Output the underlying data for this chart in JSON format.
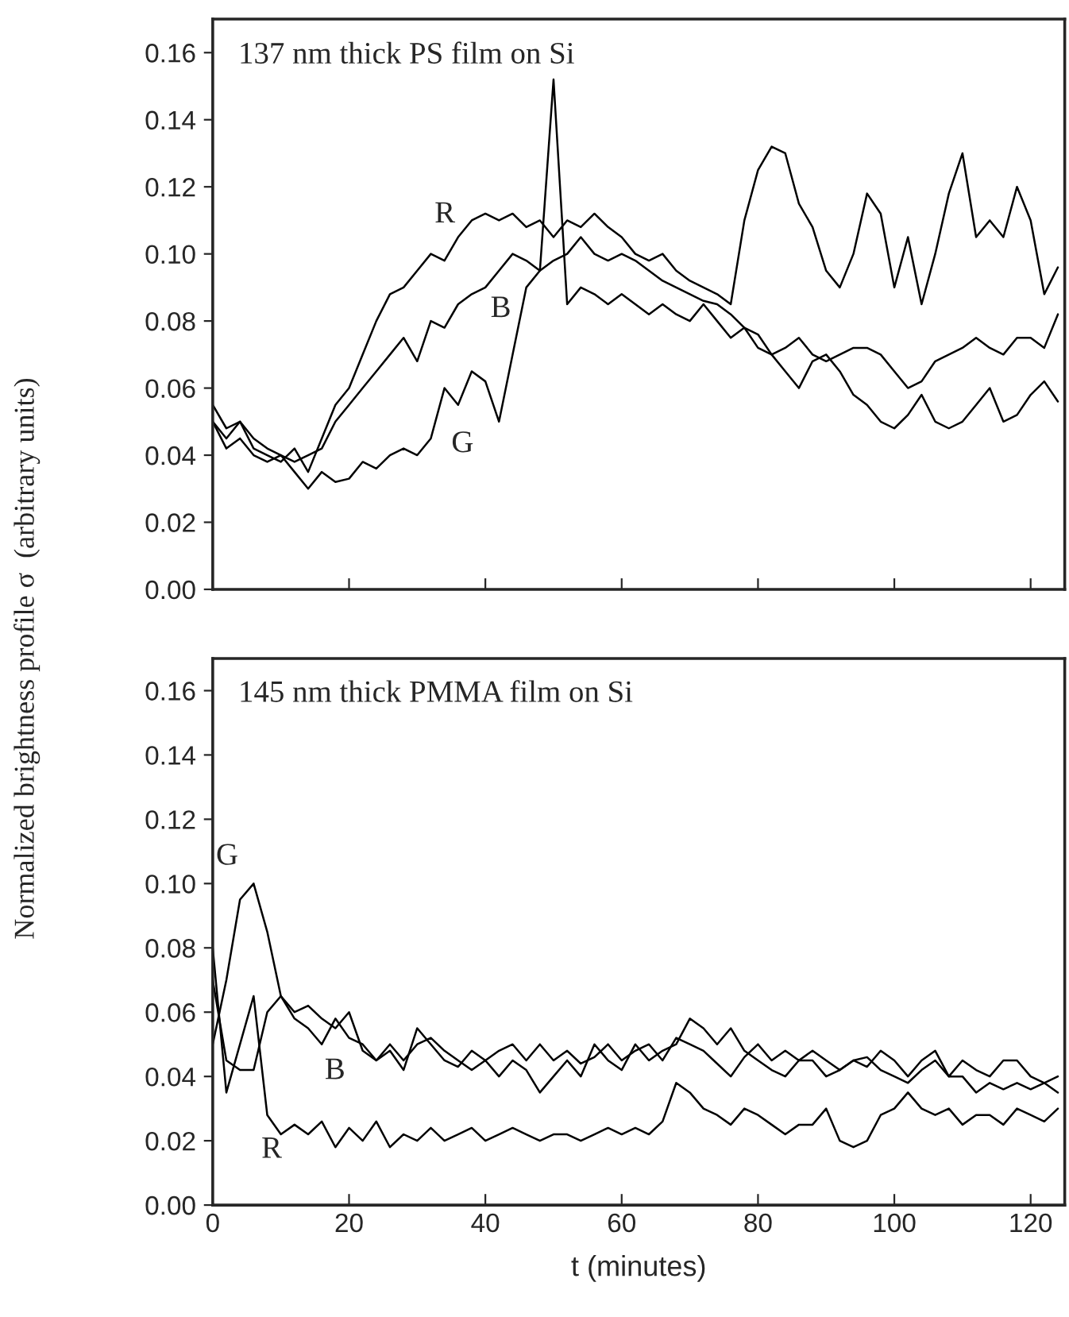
{
  "chart_data": [
    {
      "type": "line",
      "ylabel": "Normalized brightness profile σ  (arbitrary units)",
      "tick_labels": "y",
      "grid": false,
      "legend": false,
      "x": [
        0,
        2,
        4,
        6,
        8,
        10,
        12,
        14,
        16,
        18,
        20,
        22,
        24,
        26,
        28,
        30,
        32,
        34,
        36,
        38,
        40,
        42,
        44,
        46,
        48,
        50,
        52,
        54,
        56,
        58,
        60,
        62,
        64,
        66,
        68,
        70,
        72,
        74,
        76,
        78,
        80,
        82,
        84,
        86,
        88,
        90,
        92,
        94,
        96,
        98,
        100,
        102,
        104,
        106,
        108,
        110,
        112,
        114,
        116,
        118,
        120,
        122,
        124
      ],
      "xlim": [
        0,
        125
      ],
      "xticks": [
        0,
        20,
        40,
        60,
        80,
        100,
        120
      ],
      "ylim": [
        0,
        0.17
      ],
      "yticks": [
        {
          "value": 0,
          "label": "0.00"
        },
        {
          "value": 0.02,
          "label": "0.02"
        },
        {
          "value": 0.04,
          "label": "0.04"
        },
        {
          "value": 0.06,
          "label": "0.06"
        },
        {
          "value": 0.08,
          "label": "0.08"
        },
        {
          "value": 0.1,
          "label": "0.10"
        },
        {
          "value": 0.12,
          "label": "0.12"
        },
        {
          "value": 0.14,
          "label": "0.14"
        },
        {
          "value": 0.16,
          "label": "0.16"
        }
      ],
      "series": [
        {
          "name": "R",
          "color": "#000000",
          "values": [
            0.05,
            0.045,
            0.05,
            0.042,
            0.04,
            0.038,
            0.042,
            0.035,
            0.045,
            0.055,
            0.06,
            0.07,
            0.08,
            0.088,
            0.09,
            0.095,
            0.1,
            0.098,
            0.105,
            0.11,
            0.112,
            0.11,
            0.112,
            0.108,
            0.11,
            0.105,
            0.11,
            0.108,
            0.112,
            0.108,
            0.105,
            0.1,
            0.098,
            0.1,
            0.095,
            0.092,
            0.09,
            0.088,
            0.085,
            0.11,
            0.125,
            0.132,
            0.13,
            0.115,
            0.108,
            0.095,
            0.09,
            0.1,
            0.118,
            0.112,
            0.09,
            0.105,
            0.085,
            0.1,
            0.118,
            0.13,
            0.105,
            0.11,
            0.105,
            0.12,
            0.11,
            0.088,
            0.096
          ]
        },
        {
          "name": "B",
          "color": "#000000",
          "values": [
            0.055,
            0.048,
            0.05,
            0.045,
            0.042,
            0.04,
            0.038,
            0.04,
            0.042,
            0.05,
            0.055,
            0.06,
            0.065,
            0.07,
            0.075,
            0.068,
            0.08,
            0.078,
            0.085,
            0.088,
            0.09,
            0.095,
            0.1,
            0.098,
            0.095,
            0.098,
            0.1,
            0.105,
            0.1,
            0.098,
            0.1,
            0.098,
            0.095,
            0.092,
            0.09,
            0.088,
            0.086,
            0.085,
            0.082,
            0.078,
            0.076,
            0.07,
            0.072,
            0.075,
            0.07,
            0.068,
            0.07,
            0.072,
            0.072,
            0.07,
            0.065,
            0.06,
            0.062,
            0.068,
            0.07,
            0.072,
            0.075,
            0.072,
            0.07,
            0.075,
            0.075,
            0.072,
            0.082
          ]
        },
        {
          "name": "G",
          "color": "#000000",
          "values": [
            0.05,
            0.042,
            0.045,
            0.04,
            0.038,
            0.04,
            0.035,
            0.03,
            0.035,
            0.032,
            0.033,
            0.038,
            0.036,
            0.04,
            0.042,
            0.04,
            0.045,
            0.06,
            0.055,
            0.065,
            0.062,
            0.05,
            0.07,
            0.09,
            0.095,
            0.152,
            0.085,
            0.09,
            0.088,
            0.085,
            0.088,
            0.085,
            0.082,
            0.085,
            0.082,
            0.08,
            0.085,
            0.08,
            0.075,
            0.078,
            0.072,
            0.07,
            0.065,
            0.06,
            0.068,
            0.07,
            0.065,
            0.058,
            0.055,
            0.05,
            0.048,
            0.052,
            0.058,
            0.05,
            0.048,
            0.05,
            0.055,
            0.06,
            0.05,
            0.052,
            0.058,
            0.062,
            0.056
          ]
        }
      ],
      "annotations": [
        "137 nm thick PS film on Si"
      ]
    },
    {
      "type": "line",
      "xlabel": "t (minutes)",
      "grid": false,
      "legend": false,
      "x": [
        0,
        2,
        4,
        6,
        8,
        10,
        12,
        14,
        16,
        18,
        20,
        22,
        24,
        26,
        28,
        30,
        32,
        34,
        36,
        38,
        40,
        42,
        44,
        46,
        48,
        50,
        52,
        54,
        56,
        58,
        60,
        62,
        64,
        66,
        68,
        70,
        72,
        74,
        76,
        78,
        80,
        82,
        84,
        86,
        88,
        90,
        92,
        94,
        96,
        98,
        100,
        102,
        104,
        106,
        108,
        110,
        112,
        114,
        116,
        118,
        120,
        122,
        124
      ],
      "xlim": [
        0,
        125
      ],
      "xticks": [
        0,
        20,
        40,
        60,
        80,
        100,
        120
      ],
      "ylim": [
        0,
        0.17
      ],
      "yticks": [
        {
          "value": 0,
          "label": "0.00"
        },
        {
          "value": 0.02,
          "label": "0.02"
        },
        {
          "value": 0.04,
          "label": "0.04"
        },
        {
          "value": 0.06,
          "label": "0.06"
        },
        {
          "value": 0.08,
          "label": "0.08"
        },
        {
          "value": 0.1,
          "label": "0.10"
        },
        {
          "value": 0.12,
          "label": "0.12"
        },
        {
          "value": 0.14,
          "label": "0.14"
        },
        {
          "value": 0.16,
          "label": "0.16"
        }
      ],
      "series": [
        {
          "name": "G",
          "color": "#000000",
          "values": [
            0.05,
            0.07,
            0.095,
            0.1,
            0.085,
            0.065,
            0.058,
            0.055,
            0.05,
            0.058,
            0.052,
            0.05,
            0.045,
            0.048,
            0.042,
            0.055,
            0.05,
            0.045,
            0.043,
            0.048,
            0.045,
            0.04,
            0.045,
            0.042,
            0.035,
            0.04,
            0.045,
            0.04,
            0.05,
            0.045,
            0.042,
            0.05,
            0.045,
            0.048,
            0.05,
            0.058,
            0.055,
            0.05,
            0.055,
            0.048,
            0.045,
            0.042,
            0.04,
            0.045,
            0.045,
            0.04,
            0.042,
            0.045,
            0.043,
            0.048,
            0.045,
            0.04,
            0.045,
            0.048,
            0.04,
            0.045,
            0.042,
            0.04,
            0.045,
            0.045,
            0.04,
            0.038,
            0.04
          ]
        },
        {
          "name": "B",
          "color": "#000000",
          "values": [
            0.07,
            0.045,
            0.042,
            0.042,
            0.06,
            0.065,
            0.06,
            0.062,
            0.058,
            0.055,
            0.06,
            0.048,
            0.045,
            0.05,
            0.045,
            0.05,
            0.052,
            0.048,
            0.045,
            0.042,
            0.045,
            0.048,
            0.05,
            0.045,
            0.05,
            0.045,
            0.048,
            0.044,
            0.046,
            0.05,
            0.045,
            0.048,
            0.05,
            0.045,
            0.052,
            0.05,
            0.048,
            0.044,
            0.04,
            0.046,
            0.05,
            0.045,
            0.048,
            0.045,
            0.048,
            0.045,
            0.042,
            0.045,
            0.046,
            0.042,
            0.04,
            0.038,
            0.042,
            0.045,
            0.04,
            0.04,
            0.035,
            0.038,
            0.036,
            0.038,
            0.036,
            0.038,
            0.035
          ]
        },
        {
          "name": "R",
          "color": "#000000",
          "values": [
            0.08,
            0.035,
            0.05,
            0.065,
            0.028,
            0.022,
            0.025,
            0.022,
            0.026,
            0.018,
            0.024,
            0.02,
            0.026,
            0.018,
            0.022,
            0.02,
            0.024,
            0.02,
            0.022,
            0.024,
            0.02,
            0.022,
            0.024,
            0.022,
            0.02,
            0.022,
            0.022,
            0.02,
            0.022,
            0.024,
            0.022,
            0.024,
            0.022,
            0.026,
            0.038,
            0.035,
            0.03,
            0.028,
            0.025,
            0.03,
            0.028,
            0.025,
            0.022,
            0.025,
            0.025,
            0.03,
            0.02,
            0.018,
            0.02,
            0.028,
            0.03,
            0.035,
            0.03,
            0.028,
            0.03,
            0.025,
            0.028,
            0.028,
            0.025,
            0.03,
            0.028,
            0.026,
            0.03
          ]
        }
      ],
      "annotations": [
        "145 nm thick PMMA film on Si"
      ]
    }
  ]
}
